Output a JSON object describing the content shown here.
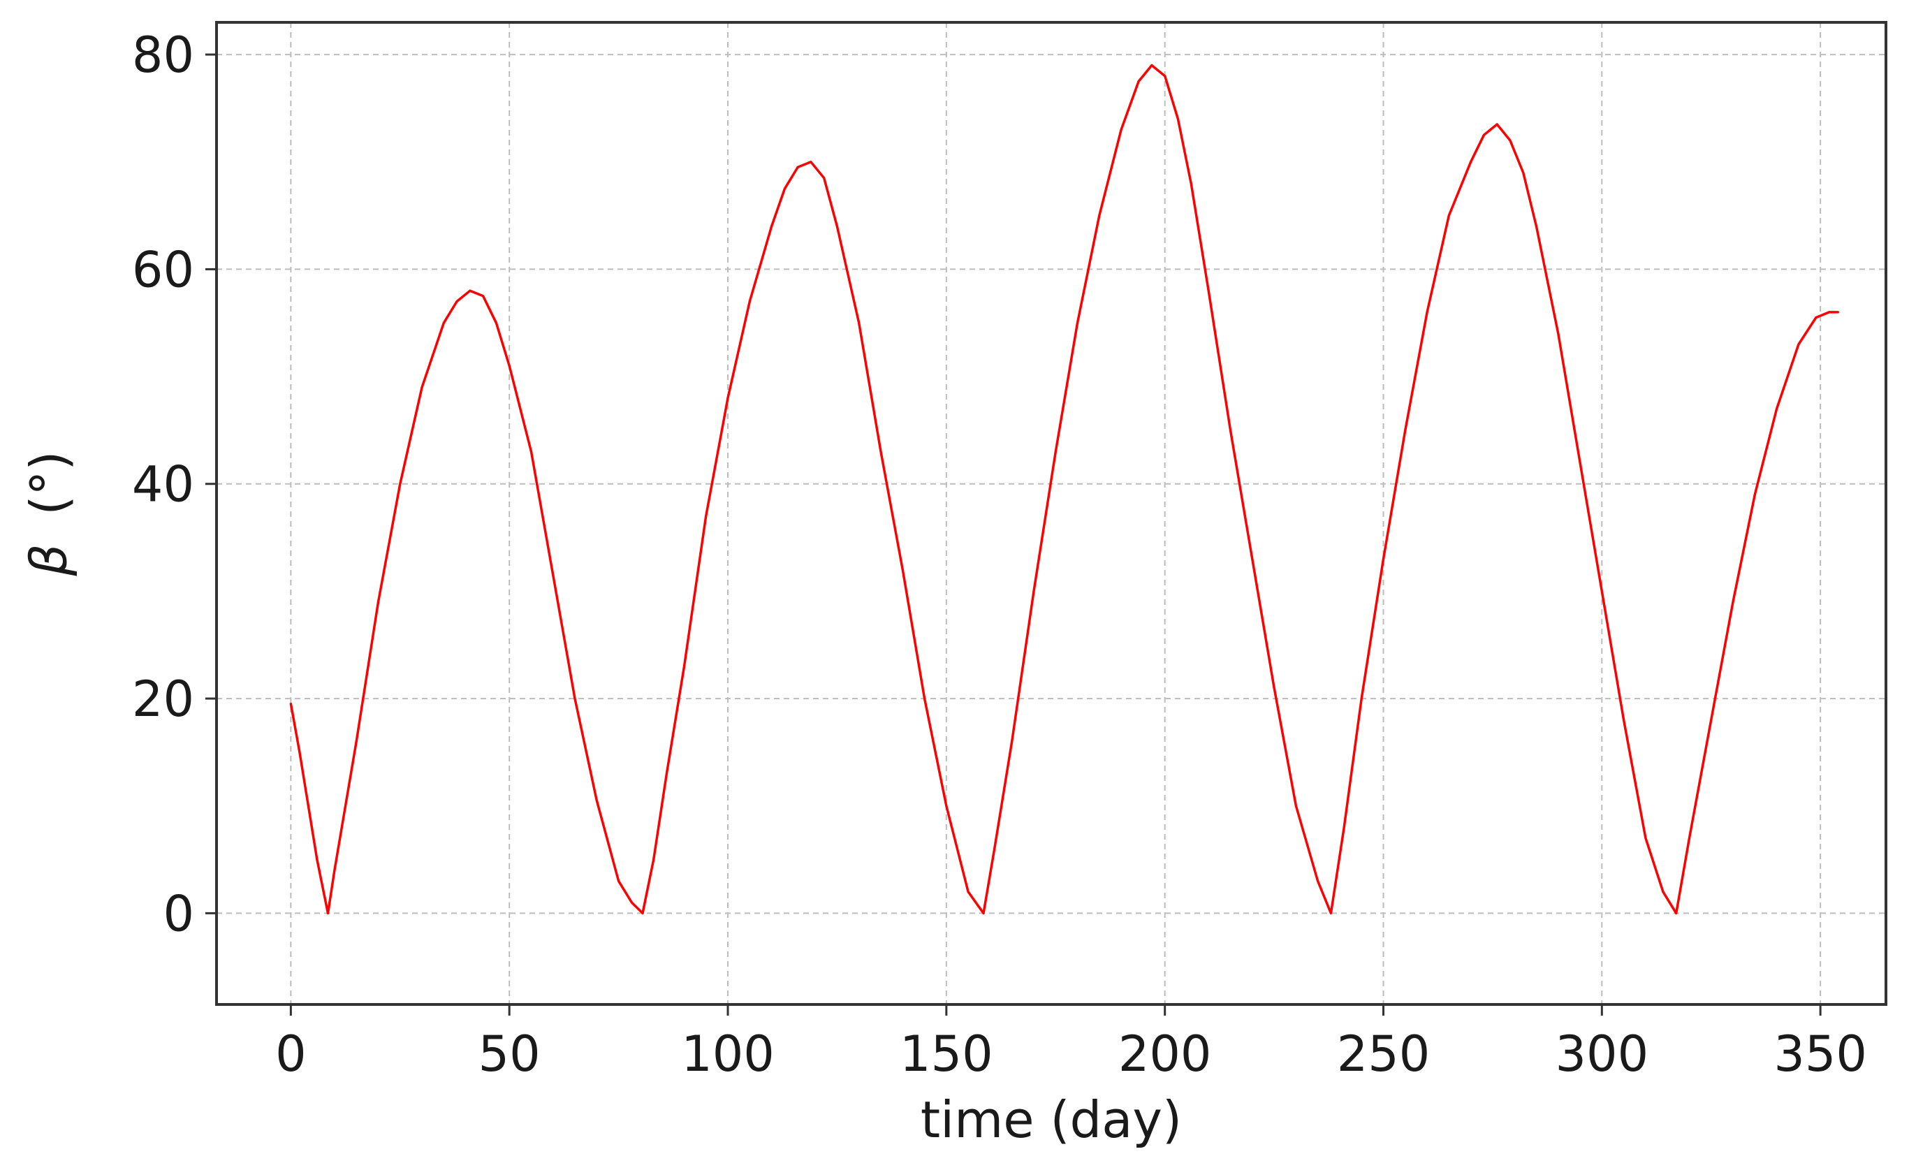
{
  "chart_data": {
    "type": "line",
    "title": "",
    "xlabel": "time (day)",
    "ylabel": "β (°)",
    "ylabel_symbol": "β",
    "ylabel_units": "(°)",
    "xlim": [
      -17,
      365
    ],
    "ylim": [
      -8.5,
      83
    ],
    "xticks": [
      0,
      50,
      100,
      150,
      200,
      250,
      300,
      350
    ],
    "yticks": [
      0,
      20,
      40,
      60,
      80
    ],
    "grid": true,
    "line_color": "#ff0000",
    "series": [
      {
        "x": [
          0,
          2,
          4,
          6,
          8.5,
          10,
          15,
          20,
          25,
          30,
          35,
          38,
          41,
          44,
          47,
          50,
          55,
          60,
          65,
          70,
          75,
          78,
          80.5,
          83,
          86,
          90,
          95,
          100,
          105,
          110,
          113,
          116,
          119,
          122,
          125,
          130,
          135,
          140,
          145,
          150,
          155,
          158.5,
          161,
          165,
          170,
          175,
          180,
          185,
          190,
          194,
          197,
          200,
          203,
          206,
          210,
          215,
          220,
          225,
          230,
          235,
          238,
          241,
          245,
          250,
          255,
          260,
          265,
          270,
          273,
          276,
          279,
          282,
          285,
          290,
          295,
          300,
          305,
          310,
          314,
          317,
          320,
          325,
          330,
          335,
          340,
          345,
          349,
          352,
          354
        ],
        "y": [
          19.5,
          15,
          10,
          5,
          0,
          4,
          16,
          29,
          40,
          49,
          55,
          57,
          58,
          57.5,
          55,
          51,
          43,
          31.5,
          20,
          10.5,
          3,
          1,
          0,
          5,
          13,
          23,
          37,
          48,
          57,
          64,
          67.5,
          69.5,
          70,
          68.5,
          64,
          55,
          43,
          32,
          20,
          10,
          2,
          0,
          6,
          16,
          30,
          43,
          55,
          65,
          73,
          77.5,
          79,
          78,
          74,
          68,
          58,
          45,
          33,
          21,
          10,
          3,
          0,
          8,
          20,
          33,
          45,
          56,
          65,
          70,
          72.5,
          73.5,
          72,
          69,
          64,
          54,
          42,
          30,
          18,
          7,
          2,
          0,
          7,
          18,
          29,
          39,
          47,
          53,
          55.5,
          56,
          56
        ]
      }
    ]
  }
}
